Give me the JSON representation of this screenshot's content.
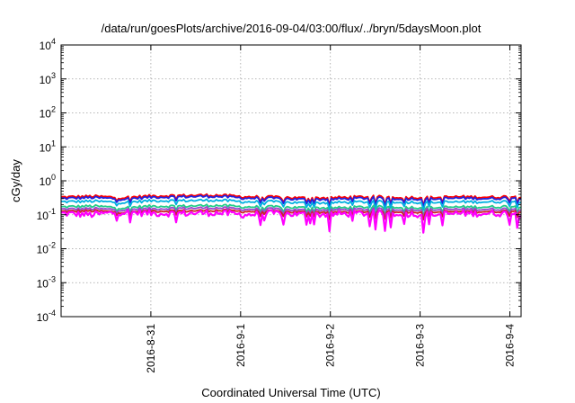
{
  "chart_data": {
    "type": "line",
    "title": "/data/run/goesPlots/archive/2016-09-04/03:00/flux/../bryn/5daysMoon.plot",
    "xlabel": "Coordinated Universal Time (UTC)",
    "ylabel": "cGy/day",
    "yscale": "log",
    "ylim": [
      0.0001,
      10000
    ],
    "xlim": [
      "2016-08-30 00:00",
      "2016-09-04 03:00"
    ],
    "grid": true,
    "y_ticks": [
      {
        "value": 0.0001,
        "base": "10",
        "exp": "-4"
      },
      {
        "value": 0.001,
        "base": "10",
        "exp": "-3"
      },
      {
        "value": 0.01,
        "base": "10",
        "exp": "-2"
      },
      {
        "value": 0.1,
        "base": "10",
        "exp": "-1"
      },
      {
        "value": 1,
        "base": "10",
        "exp": "0"
      },
      {
        "value": 10,
        "base": "10",
        "exp": "1"
      },
      {
        "value": 100,
        "base": "10",
        "exp": "2"
      },
      {
        "value": 1000,
        "base": "10",
        "exp": "3"
      },
      {
        "value": 10000,
        "base": "10",
        "exp": "4"
      }
    ],
    "x_ticks": [
      {
        "date": "2016-08-31",
        "label": "2016-8-31"
      },
      {
        "date": "2016-09-01",
        "label": "2016-9-1"
      },
      {
        "date": "2016-09-02",
        "label": "2016-9-2"
      },
      {
        "date": "2016-09-03",
        "label": "2016-9-3"
      },
      {
        "date": "2016-09-04",
        "label": "2016-9-4"
      }
    ],
    "series": [
      {
        "color": "#ff0000",
        "approx_level": 0.33,
        "values": [
          0.33,
          0.35,
          0.32,
          0.36,
          0.37,
          0.38,
          0.34,
          0.33,
          0.31,
          0.32,
          0.34,
          0.33,
          0.32,
          0.34,
          0.33,
          0.35
        ]
      },
      {
        "color": "#2222dd",
        "approx_level": 0.3,
        "values": [
          0.3,
          0.32,
          0.29,
          0.33,
          0.34,
          0.35,
          0.31,
          0.3,
          0.28,
          0.29,
          0.31,
          0.3,
          0.29,
          0.31,
          0.3,
          0.32
        ]
      },
      {
        "color": "#00b0e0",
        "approx_level": 0.24,
        "values": [
          0.24,
          0.25,
          0.23,
          0.26,
          0.26,
          0.27,
          0.24,
          0.24,
          0.22,
          0.23,
          0.24,
          0.24,
          0.23,
          0.24,
          0.24,
          0.25
        ]
      },
      {
        "color": "#22cc88",
        "approx_level": 0.17,
        "values": [
          0.17,
          0.18,
          0.16,
          0.18,
          0.18,
          0.19,
          0.17,
          0.17,
          0.16,
          0.16,
          0.17,
          0.17,
          0.16,
          0.17,
          0.17,
          0.18
        ]
      },
      {
        "color": "#9944cc",
        "approx_level": 0.145,
        "values": [
          0.145,
          0.15,
          0.14,
          0.15,
          0.155,
          0.16,
          0.145,
          0.145,
          0.135,
          0.14,
          0.145,
          0.145,
          0.14,
          0.145,
          0.145,
          0.15
        ]
      },
      {
        "color": "#cc2222",
        "approx_level": 0.125,
        "values": [
          0.125,
          0.13,
          0.12,
          0.13,
          0.13,
          0.135,
          0.125,
          0.125,
          0.118,
          0.12,
          0.125,
          0.125,
          0.12,
          0.125,
          0.125,
          0.13
        ]
      },
      {
        "color": "#ff00ff",
        "approx_level": 0.11,
        "values": [
          0.11,
          0.1,
          0.12,
          0.11,
          0.11,
          0.115,
          0.1,
          0.11,
          0.1,
          0.105,
          0.11,
          0.11,
          0.1,
          0.11,
          0.11,
          0.11
        ]
      }
    ]
  }
}
